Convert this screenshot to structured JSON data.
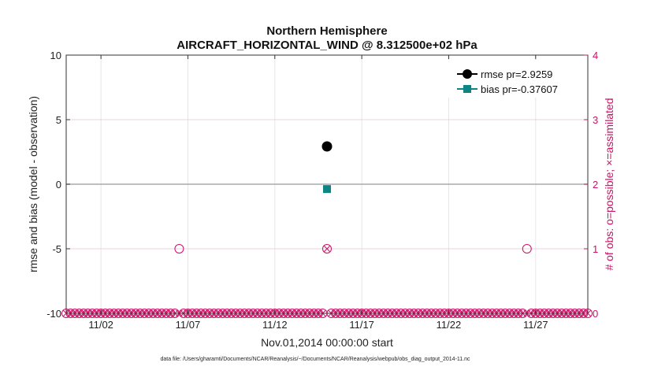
{
  "chart_data": {
    "type": "scatter",
    "title": [
      "Northern Hemisphere",
      "AIRCRAFT_HORIZONTAL_WIND @ 8.312500e+02 hPa"
    ],
    "xlabel": "Nov.01,2014 00:00:00 start",
    "ylabel": "rmse and bias (model - observation)",
    "ylabel_right": "# of obs: o=possible; ×=assimilated",
    "xlim": [
      0,
      30
    ],
    "ylim": [
      -10,
      10
    ],
    "ylim_right": [
      0,
      4
    ],
    "x_ticks": [
      {
        "value": 2,
        "label": "11/02"
      },
      {
        "value": 7,
        "label": "11/07"
      },
      {
        "value": 12,
        "label": "11/12"
      },
      {
        "value": 17,
        "label": "11/17"
      },
      {
        "value": 22,
        "label": "11/22"
      },
      {
        "value": 27,
        "label": "11/27"
      }
    ],
    "y_ticks": [
      {
        "value": 10,
        "label": "10"
      },
      {
        "value": 5,
        "label": "5"
      },
      {
        "value": 0,
        "label": "0"
      },
      {
        "value": -5,
        "label": "-5"
      },
      {
        "value": -10,
        "label": "-10"
      }
    ],
    "y_right_ticks": [
      {
        "value": 4,
        "label": "4"
      },
      {
        "value": 3,
        "label": "3"
      },
      {
        "value": 2,
        "label": "2"
      },
      {
        "value": 1,
        "label": "1"
      },
      {
        "value": 0,
        "label": "0"
      }
    ],
    "grid": true,
    "zero_line": 0,
    "series": [
      {
        "name": "rmse",
        "legend": "rmse pr=2.9259",
        "color": "#000000",
        "marker": "circle",
        "points": [
          {
            "x": 15,
            "y": 2.9259
          }
        ]
      },
      {
        "name": "bias",
        "legend": "bias pr=-0.37607",
        "color": "#0e8585",
        "marker": "square",
        "points": [
          {
            "x": 15,
            "y": -0.37607
          }
        ]
      }
    ],
    "obs_counts": {
      "color": "#cc1166",
      "step_days": 0.25,
      "possible_nonzero": [
        {
          "x": 6.5,
          "count": 1
        },
        {
          "x": 15,
          "count": 1
        },
        {
          "x": 26.5,
          "count": 1
        }
      ],
      "assimilated_nonzero": [
        {
          "x": 15,
          "count": 1
        }
      ]
    },
    "legend_position": "top-right"
  },
  "footnote": "data file: /Users/gharamti/Documents/NCAR/Reanalysis/~/Documents/NCAR/Reanalysis/webpub/obs_diag_output_2014-11.nc"
}
